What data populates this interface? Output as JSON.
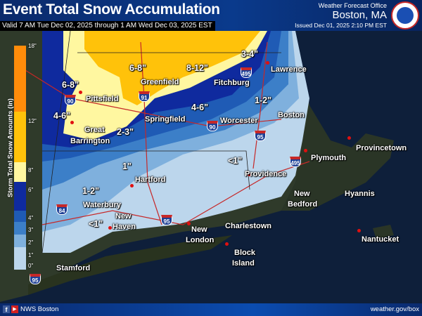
{
  "header": {
    "title": "Event Total Snow Accumulation",
    "valid": "Valid 7 AM Tue Dec 02, 2025 through 1 AM Wed Dec 03, 2025 EST",
    "office_label": "Weather Forecast Office",
    "office": "Boston, MA",
    "issued": "Issued Dec 01, 2025 2:10 PM EST"
  },
  "legend": {
    "title": "Storm Total Snow Amounts (in)",
    "ticks": [
      "18\"",
      "12\"",
      "8\"",
      "6\"",
      "4\"",
      "3\"",
      "2\"",
      "1\"",
      "0\""
    ],
    "colors": {
      "12-18": "#ff8c0a",
      "8-12": "#ffc20a",
      "6-8": "#fff7a0",
      "4-6": "#0f2a9e",
      "3-4": "#1f5bb5",
      "2-3": "#3c7fc8",
      "1-2": "#7fb0dd",
      "0-1": "#bcd6ec"
    }
  },
  "amounts": [
    "6-8\"",
    "6-8\"",
    "8-12\"",
    "3-4\"",
    "4-6\"",
    "2-3\"",
    "4-6\"",
    "1-2\"",
    "1\"",
    "<1\"",
    "1-2\"",
    "<1\""
  ],
  "cities": [
    "Lawrence",
    "Pittsfield",
    "Greenfield",
    "Fitchburg",
    "Worcester",
    "Boston",
    "Great",
    "Barrington",
    "Springfield",
    "Hartford",
    "Providence",
    "Plymouth",
    "Provincetown",
    "Hyannis",
    "New",
    "Bedford",
    "Nantucket",
    "Waterbury",
    "New",
    "Haven",
    "New",
    "London",
    "Charlestown",
    "Block",
    "Island",
    "Stamford"
  ],
  "highways": [
    "495",
    "91",
    "90",
    "90",
    "95",
    "495",
    "84",
    "95",
    "95"
  ],
  "footer": {
    "social": "NWS Boston",
    "facebook_icon": "f",
    "youtube_icon": "▶",
    "website": "weather.gov/box"
  }
}
